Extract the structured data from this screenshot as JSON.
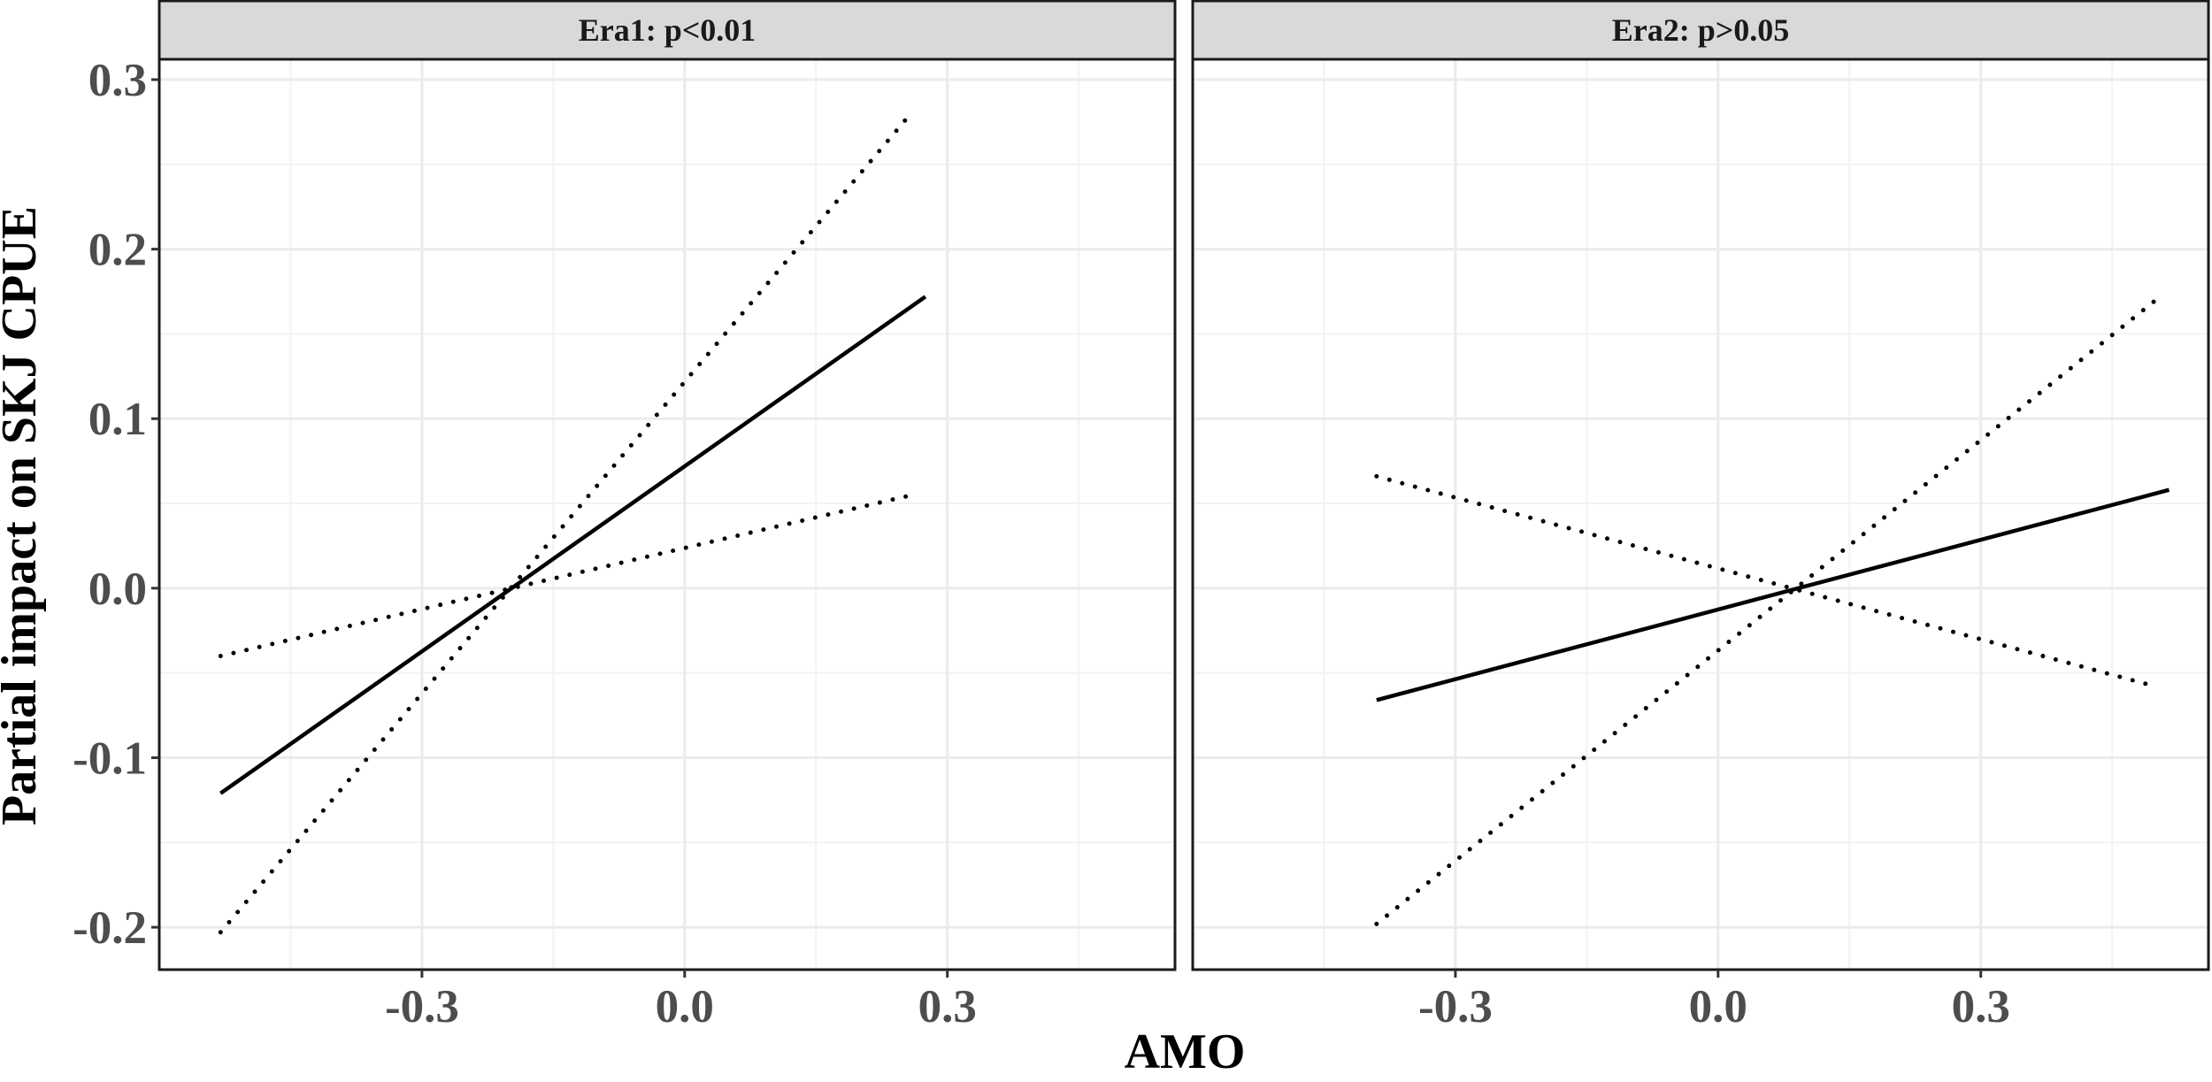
{
  "chart_data": {
    "type": "line",
    "title": "",
    "xlabel": "AMO",
    "ylabel": "Partial impact on SKJ CPUE",
    "grid": true,
    "legend": "none",
    "xlim": [
      -0.6,
      0.56
    ],
    "ylim": [
      -0.225,
      0.312
    ],
    "x_ticks": [
      -0.3,
      0.0,
      0.3
    ],
    "x_tick_labels": [
      "-0.3",
      "0.0",
      "0.3"
    ],
    "y_ticks": [
      -0.2,
      -0.1,
      0.0,
      0.1,
      0.2,
      0.3
    ],
    "y_tick_labels": [
      "-0.2",
      "-0.1",
      "0.0",
      "0.1",
      "0.2",
      "0.3"
    ],
    "panels": [
      {
        "label": "Era1: p<0.01",
        "series": [
          {
            "style": "solid",
            "x": [
              -0.53,
              0.275
            ],
            "y": [
              -0.121,
              0.172
            ]
          },
          {
            "style": "dotted",
            "x": [
              -0.53,
              0.26
            ],
            "y": [
              -0.203,
              0.281
            ]
          },
          {
            "style": "dotted",
            "x": [
              -0.53,
              0.26
            ],
            "y": [
              -0.04,
              0.055
            ]
          }
        ]
      },
      {
        "label": "Era2: p>0.05",
        "series": [
          {
            "style": "solid",
            "x": [
              -0.39,
              0.515
            ],
            "y": [
              -0.066,
              0.058
            ]
          },
          {
            "style": "dotted",
            "x": [
              -0.39,
              0.5
            ],
            "y": [
              -0.198,
              0.17
            ]
          },
          {
            "style": "dotted",
            "x": [
              -0.39,
              0.5
            ],
            "y": [
              0.066,
              -0.058
            ]
          }
        ]
      }
    ],
    "colors": {
      "line": "#000000",
      "strip_fill": "#d9d9d9",
      "grid_major": "#ebebeb",
      "grid_minor": "#f2f2f2",
      "tick_text": "#4d4d4d"
    }
  }
}
